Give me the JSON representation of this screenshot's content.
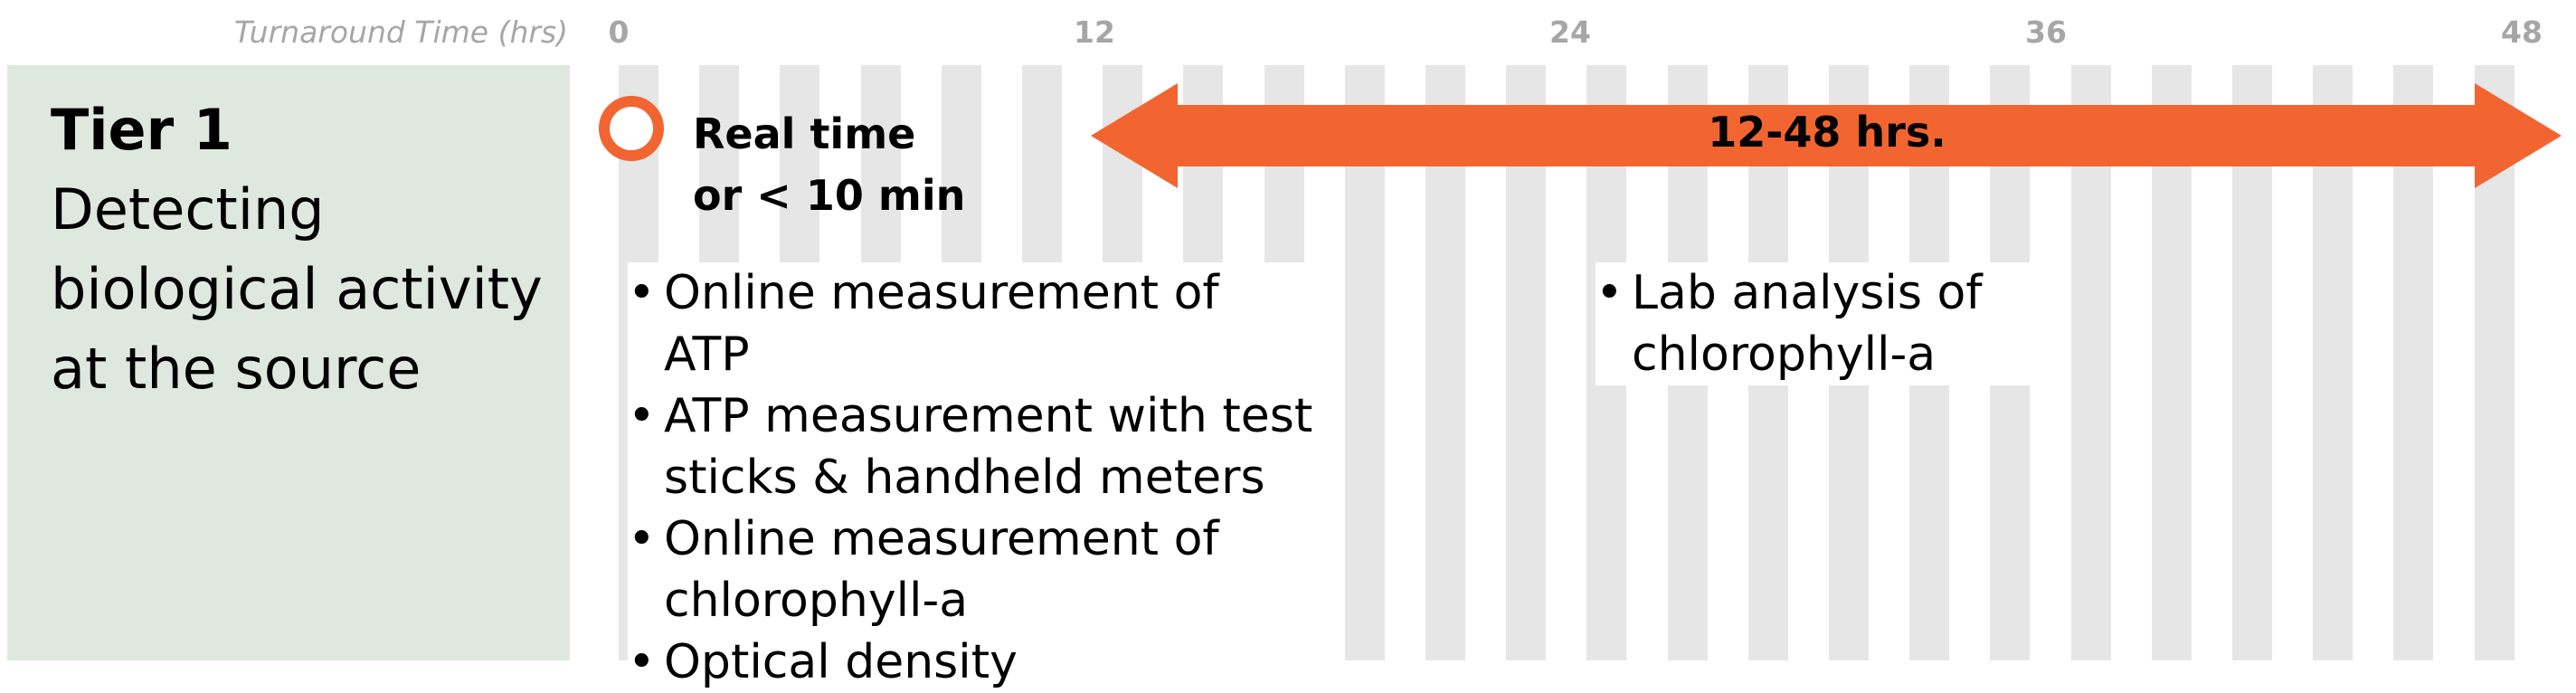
{
  "axis": {
    "label": "Turnaround Time (hrs)",
    "ticks": [
      {
        "value": 0,
        "label": "0"
      },
      {
        "value": 12,
        "label": "12"
      },
      {
        "value": 24,
        "label": "24"
      },
      {
        "value": 36,
        "label": "36"
      },
      {
        "value": 48,
        "label": "48"
      }
    ],
    "min": 0,
    "max": 48
  },
  "tier": {
    "title": "Tier 1",
    "description": "Detecting biological activity at the source"
  },
  "realtime": {
    "line1": "Real time",
    "line2": "or < 10 min"
  },
  "range": {
    "label": "12-48 hrs.",
    "start": 12,
    "end": 48
  },
  "methods_realtime": [
    "Online measurement of ATP",
    "ATP measurement with test sticks & handheld meters",
    "Online measurement of chlorophyll-a",
    "Optical density"
  ],
  "methods_lab": [
    "Lab analysis of chlorophyll-a"
  ],
  "colors": {
    "accent": "#f26531",
    "panel": "#dfe8df",
    "stripe": "#e6e6e6",
    "axis_text": "#a6a6a6"
  }
}
